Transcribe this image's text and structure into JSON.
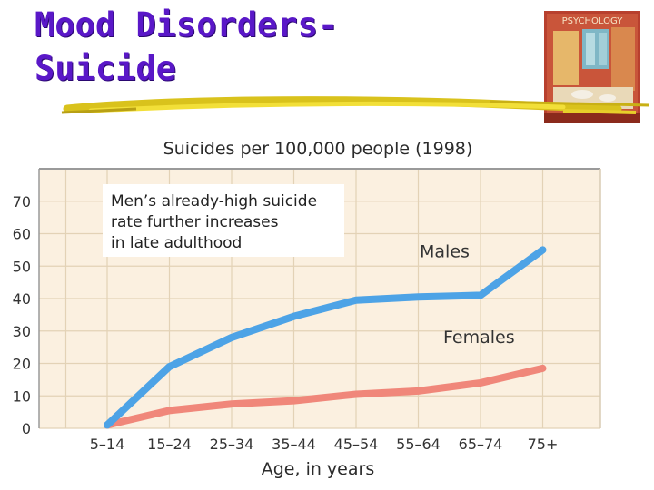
{
  "slide": {
    "title_line1": "Mood Disorders-",
    "title_line2": "Suicide",
    "book_cover_label": "PSYCHOLOGY"
  },
  "colors": {
    "title": "#5a18c8",
    "males": "#4da3e6",
    "females": "#f0877a",
    "plot_bg": "#fbf0e0",
    "grid": "#e3d2b6"
  },
  "chart_data": {
    "type": "line",
    "title": "Suicides per 100,000 people (1998)",
    "xlabel": "Age, in years",
    "ylabel": "",
    "categories": [
      "5–14",
      "15–24",
      "25–34",
      "35–44",
      "45–54",
      "55–64",
      "65–74",
      "75+"
    ],
    "yticks": [
      0,
      10,
      20,
      30,
      40,
      50,
      60,
      70
    ],
    "ylim": [
      0,
      80
    ],
    "grid": true,
    "series": [
      {
        "name": "Males",
        "values": [
          1,
          19,
          28,
          34.5,
          39.5,
          40.5,
          41,
          55
        ]
      },
      {
        "name": "Females",
        "values": [
          1,
          5.5,
          7.5,
          8.5,
          10.5,
          11.5,
          14,
          18.5
        ]
      }
    ],
    "annotation": [
      "Men’s already-high suicide",
      "rate further increases",
      "in late adulthood"
    ]
  }
}
